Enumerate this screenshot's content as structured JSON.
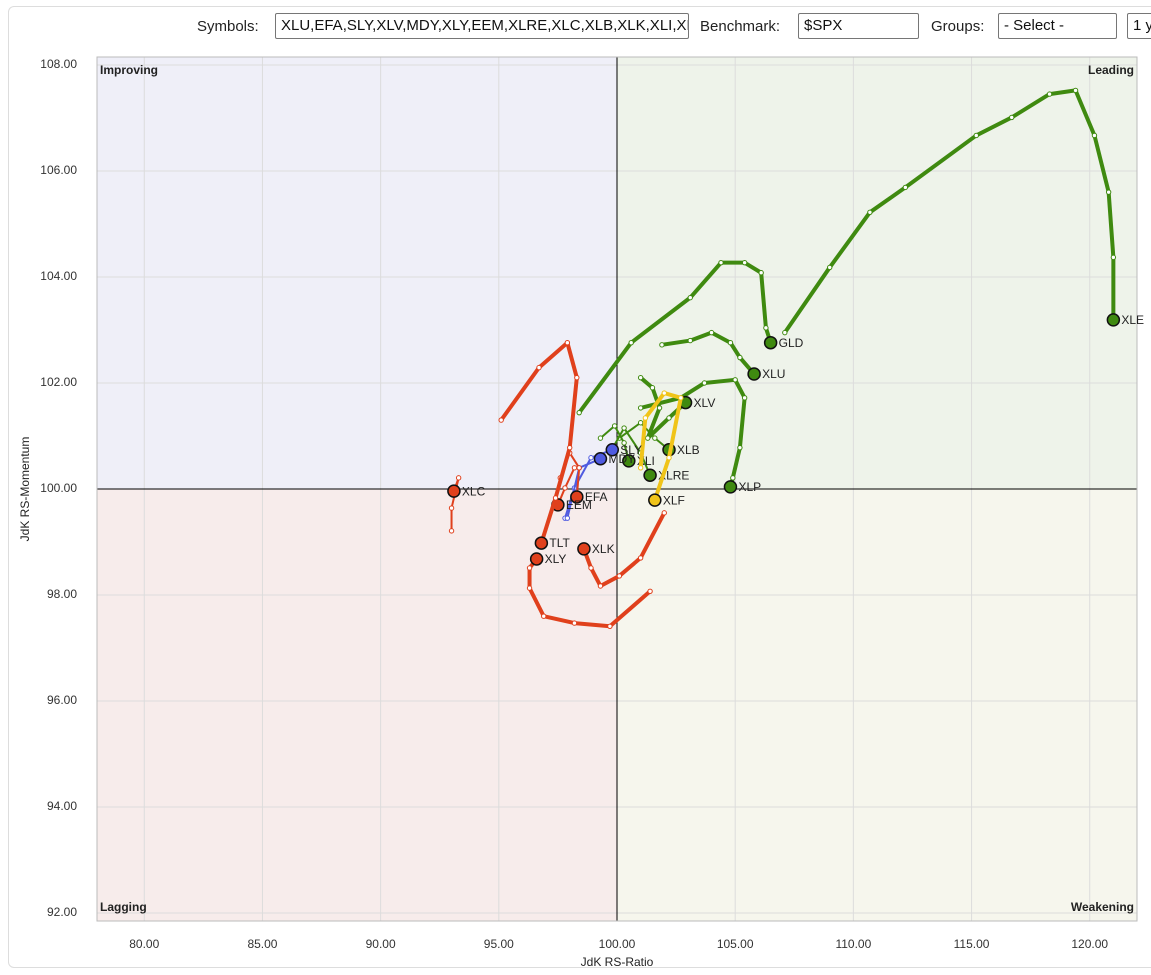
{
  "controls": {
    "symbols_label": "Symbols:",
    "symbols_value": "XLU,EFA,SLY,XLV,MDY,XLY,EEM,XLRE,XLC,XLB,XLK,XLI,XLP,XLF,XLE,GLD,TLT",
    "benchmark_label": "Benchmark:",
    "benchmark_value": "$SPX",
    "groups_label": "Groups:",
    "groups_value": "- Select -",
    "period_value": "1 y"
  },
  "chart_data": {
    "type": "line",
    "xlabel": "JdK RS-Ratio",
    "ylabel": "JdK RS-Momentum",
    "quadrants": {
      "improving": "Improving",
      "leading": "Leading",
      "lagging": "Lagging",
      "weakening": "Weakening"
    },
    "center": [
      100,
      100
    ],
    "xlim": [
      78,
      122
    ],
    "ylim": [
      91.85,
      108.15
    ],
    "xticks": [
      {
        "value": 80,
        "label": "80.00"
      },
      {
        "value": 85,
        "label": "85.00"
      },
      {
        "value": 90,
        "label": "90.00"
      },
      {
        "value": 95,
        "label": "95.00"
      },
      {
        "value": 100,
        "label": "100.00"
      },
      {
        "value": 105,
        "label": "105.00"
      },
      {
        "value": 110,
        "label": "110.00"
      },
      {
        "value": 115,
        "label": "115.00"
      },
      {
        "value": 120,
        "label": "120.00"
      }
    ],
    "yticks": [
      {
        "value": 92,
        "label": "92.00"
      },
      {
        "value": 94,
        "label": "94.00"
      },
      {
        "value": 96,
        "label": "96.00"
      },
      {
        "value": 98,
        "label": "98.00"
      },
      {
        "value": 100,
        "label": "100.00"
      },
      {
        "value": 102,
        "label": "102.00"
      },
      {
        "value": 104,
        "label": "104.00"
      },
      {
        "value": 106,
        "label": "106.00"
      },
      {
        "value": 108,
        "label": "108.00"
      }
    ],
    "grid": true,
    "series": [
      {
        "name": "XLE",
        "color": "#3f8a10",
        "x": [
          107.1,
          109.0,
          110.7,
          112.2,
          115.2,
          116.7,
          118.3,
          119.4,
          120.2,
          120.8,
          121.0,
          121.0
        ],
        "y": [
          102.95,
          104.18,
          105.22,
          105.69,
          106.67,
          107.01,
          107.45,
          107.52,
          106.67,
          105.6,
          104.37,
          103.19
        ]
      },
      {
        "name": "GLD",
        "color": "#3f8a10",
        "x": [
          98.4,
          100.6,
          103.1,
          104.4,
          105.4,
          106.1,
          106.3,
          106.5
        ],
        "y": [
          101.44,
          102.76,
          103.61,
          104.27,
          104.27,
          104.08,
          103.04,
          102.76
        ]
      },
      {
        "name": "XLU",
        "color": "#3f8a10",
        "x": [
          101.9,
          103.1,
          104.0,
          104.8,
          105.2,
          105.8
        ],
        "y": [
          102.72,
          102.8,
          102.95,
          102.76,
          102.48,
          102.17
        ]
      },
      {
        "name": "XLP",
        "color": "#3f8a10",
        "x": [
          101.0,
          102.7,
          103.7,
          105.0,
          105.4,
          105.2,
          104.9,
          104.8
        ],
        "y": [
          101.53,
          101.72,
          102.0,
          102.06,
          101.72,
          100.78,
          100.21,
          100.04
        ]
      },
      {
        "name": "XLV",
        "color": "#3f8a10",
        "x": [
          101.0,
          101.5,
          101.8,
          101.3,
          102.2,
          102.9
        ],
        "y": [
          102.1,
          101.91,
          101.53,
          100.96,
          101.34,
          101.63
        ]
      },
      {
        "name": "XLB",
        "color": "#3f8a10",
        "x": [
          100.1,
          101.0,
          101.6,
          102.2
        ],
        "y": [
          100.96,
          101.25,
          100.96,
          100.74
        ]
      },
      {
        "name": "XLRE",
        "color": "#3f8a10",
        "x": [
          99.7,
          100.3,
          101.0,
          101.4
        ],
        "y": [
          100.68,
          101.15,
          100.68,
          100.26
        ]
      },
      {
        "name": "XLI",
        "color": "#3f8a10",
        "x": [
          99.3,
          99.9,
          100.3,
          100.5
        ],
        "y": [
          100.96,
          101.19,
          100.87,
          100.53
        ]
      },
      {
        "name": "XLF",
        "color": "#f0c419",
        "x": [
          101.0,
          101.2,
          102.0,
          102.7,
          102.2,
          101.6
        ],
        "y": [
          100.4,
          101.34,
          101.81,
          101.72,
          100.59,
          99.79
        ]
      },
      {
        "name": "SLY",
        "color": "#4f5be0",
        "x": [
          97.8,
          98.2,
          98.9,
          99.8
        ],
        "y": [
          99.45,
          100.02,
          100.59,
          100.74
        ]
      },
      {
        "name": "MDY",
        "color": "#4f5be0",
        "x": [
          97.9,
          98.4,
          99.3
        ],
        "y": [
          99.45,
          100.4,
          100.57
        ]
      },
      {
        "name": "XLC",
        "color": "#e0401c",
        "x": [
          93.0,
          93.0,
          93.3,
          93.1
        ],
        "y": [
          99.21,
          99.64,
          100.21,
          99.96
        ]
      },
      {
        "name": "EFA",
        "color": "#e0401c",
        "x": [
          97.6,
          98.0,
          98.4,
          98.3
        ],
        "y": [
          100.21,
          100.68,
          100.4,
          99.85
        ]
      },
      {
        "name": "EEM",
        "color": "#e0401c",
        "x": [
          98.2,
          97.8,
          97.5
        ],
        "y": [
          100.4,
          100.02,
          99.7
        ]
      },
      {
        "name": "TLT",
        "color": "#e0401c",
        "x": [
          95.1,
          96.7,
          97.9,
          98.3,
          98.0,
          97.4,
          96.8
        ],
        "y": [
          101.3,
          102.29,
          102.76,
          102.1,
          100.78,
          99.83,
          98.98
        ]
      },
      {
        "name": "XLY",
        "color": "#e0401c",
        "x": [
          101.4,
          99.7,
          98.2,
          96.9,
          96.3,
          96.3,
          96.6
        ],
        "y": [
          98.07,
          97.41,
          97.47,
          97.6,
          98.13,
          98.51,
          98.68
        ]
      },
      {
        "name": "XLK",
        "color": "#e0401c",
        "x": [
          102.0,
          101.0,
          100.1,
          99.3,
          98.9,
          98.6
        ],
        "y": [
          99.55,
          98.7,
          98.36,
          98.17,
          98.51,
          98.87
        ]
      }
    ]
  }
}
